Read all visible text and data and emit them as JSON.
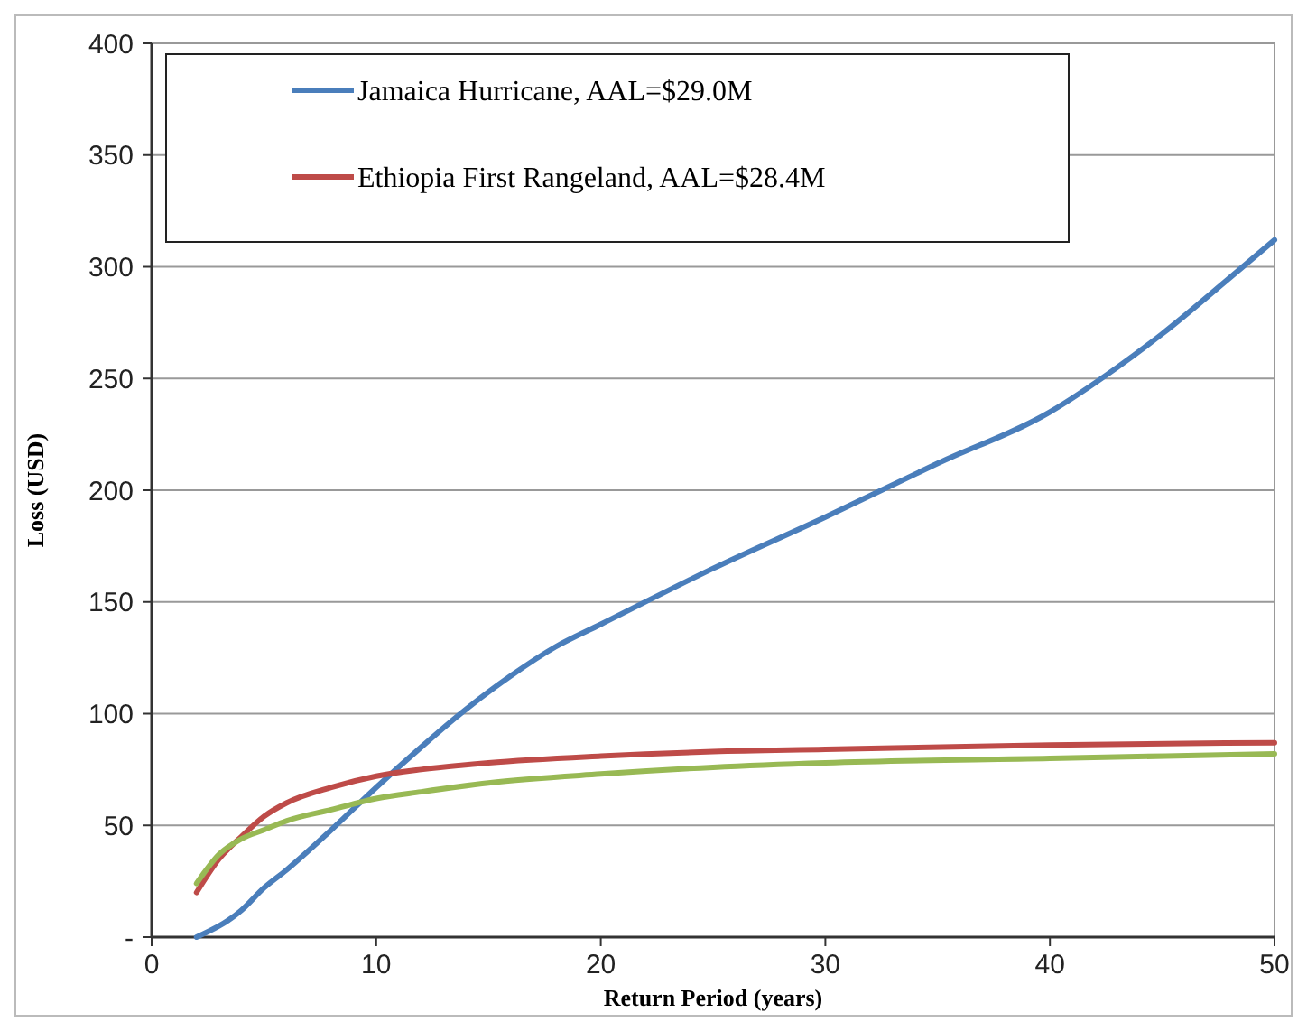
{
  "chart_data": {
    "type": "line",
    "xlabel": "Return Period (years)",
    "ylabel": "Loss (USD)",
    "xlim": [
      0,
      50
    ],
    "xticks": [
      0,
      10,
      20,
      30,
      40,
      50
    ],
    "ylim": [
      0,
      400
    ],
    "yticks": [
      {
        "value": 0,
        "label": "-"
      },
      50,
      100,
      150,
      200,
      250,
      300,
      350,
      400
    ],
    "grid": "y",
    "legend": "top left",
    "marker": "none",
    "line_style": "solid",
    "series": [
      {
        "name": "Jamaica Hurricane, AAL=$29.0M",
        "color": "#4a7ebb",
        "x": [
          2,
          4,
          5,
          6,
          8,
          10,
          12,
          14,
          16,
          18,
          20,
          25,
          30,
          35,
          40,
          43,
          45,
          48,
          50
        ],
        "values": [
          0,
          12,
          22,
          30,
          48,
          67,
          85,
          102,
          117,
          130,
          140,
          165,
          188,
          212,
          235,
          255,
          270,
          295,
          312
        ]
      },
      {
        "name": "Ethiopia First Rangeland, AAL=$28.4M",
        "color": "#be4b48",
        "x": [
          2,
          3,
          4,
          5,
          6,
          8,
          10,
          12,
          15,
          20,
          25,
          30,
          40,
          50
        ],
        "values": [
          20,
          35,
          45,
          54,
          60,
          67,
          72,
          75,
          78,
          81,
          83,
          84,
          86,
          87
        ]
      },
      {
        "color": "#98b954",
        "x": [
          2,
          3,
          4,
          5,
          6,
          8,
          10,
          12,
          15,
          20,
          25,
          30,
          40,
          50
        ],
        "values": [
          24,
          37,
          44,
          48,
          52,
          57,
          62,
          65,
          69,
          73,
          76,
          78,
          80,
          82
        ]
      }
    ]
  }
}
